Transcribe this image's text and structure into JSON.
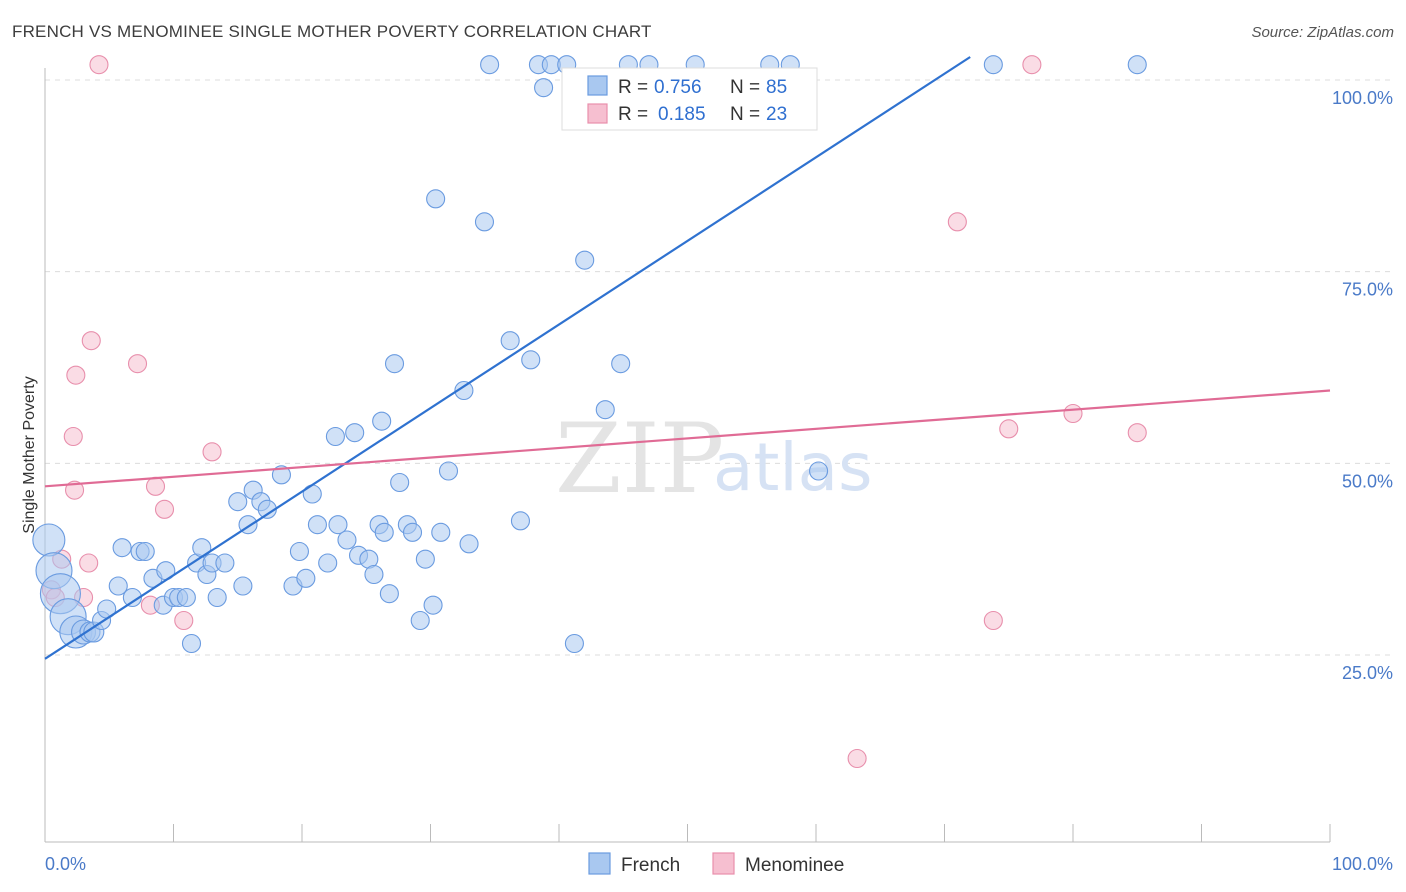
{
  "title": "FRENCH VS MENOMINEE SINGLE MOTHER POVERTY CORRELATION CHART",
  "source": "Source: ZipAtlas.com",
  "watermark": {
    "zip": "ZIP",
    "atlas": "atlas"
  },
  "legend": {
    "series": [
      {
        "r_label": "R =",
        "r_value": "0.756",
        "n_label": "N =",
        "n_value": "85"
      },
      {
        "r_label": "R =",
        "r_value": "0.185",
        "n_label": "N =",
        "n_value": "23"
      }
    ]
  },
  "bottom_legend": [
    "French",
    "Menominee"
  ],
  "colors": {
    "french_fill": "#a9c8f0",
    "french_stroke": "#6a9be0",
    "french_line": "#2f72d0",
    "menominee_fill": "#f6bfd0",
    "menominee_stroke": "#e88fac",
    "menominee_line": "#e06b95",
    "tick_text": "#4a7ac8",
    "grid": "#dcdcdc"
  },
  "chart_data": {
    "type": "scatter",
    "ylabel": "Single Mother Poverty",
    "xlim": [
      0,
      100
    ],
    "ylim": [
      0,
      105
    ],
    "x_tick_labels": [
      {
        "value": 0,
        "label": "0.0%"
      },
      {
        "value": 100,
        "label": "100.0%"
      }
    ],
    "y_tick_labels": [
      {
        "value": 25,
        "label": "25.0%"
      },
      {
        "value": 50,
        "label": "50.0%"
      },
      {
        "value": 75,
        "label": "75.0%"
      },
      {
        "value": 100,
        "label": "100.0%"
      }
    ],
    "grid": "horizontal-dashed",
    "legend_position": "top-center",
    "series": [
      {
        "name": "French",
        "trendline": {
          "x": [
            0,
            72
          ],
          "y": [
            24.5,
            103
          ]
        },
        "points": [
          [
            0.3,
            40,
            16
          ],
          [
            0.7,
            36,
            18
          ],
          [
            1.2,
            33,
            20
          ],
          [
            1.8,
            30,
            18
          ],
          [
            2.4,
            28,
            16
          ],
          [
            3.0,
            28,
            12
          ],
          [
            3.5,
            28,
            10
          ],
          [
            3.8,
            28,
            10
          ],
          [
            4.4,
            29.5,
            9
          ],
          [
            4.8,
            31,
            9
          ],
          [
            5.7,
            34,
            9
          ],
          [
            6.0,
            39,
            9
          ],
          [
            6.8,
            32.5,
            9
          ],
          [
            7.4,
            38.5,
            9
          ],
          [
            7.8,
            38.5,
            9
          ],
          [
            8.4,
            35,
            9
          ],
          [
            9.2,
            31.5,
            9
          ],
          [
            9.4,
            36,
            9
          ],
          [
            10,
            32.5,
            9
          ],
          [
            10.4,
            32.5,
            9
          ],
          [
            11,
            32.5,
            9
          ],
          [
            11.4,
            26.5,
            9
          ],
          [
            11.8,
            37,
            9
          ],
          [
            12.2,
            39,
            9
          ],
          [
            12.6,
            35.5,
            9
          ],
          [
            13.0,
            37,
            9
          ],
          [
            13.4,
            32.5,
            9
          ],
          [
            14.0,
            37,
            9
          ],
          [
            15.0,
            45,
            9
          ],
          [
            15.4,
            34,
            9
          ],
          [
            15.8,
            42,
            9
          ],
          [
            16.2,
            46.5,
            9
          ],
          [
            16.8,
            45,
            9
          ],
          [
            17.3,
            44,
            9
          ],
          [
            18.4,
            48.5,
            9
          ],
          [
            19.3,
            34,
            9
          ],
          [
            19.8,
            38.5,
            9
          ],
          [
            20.3,
            35,
            9
          ],
          [
            20.8,
            46,
            9
          ],
          [
            21.2,
            42,
            9
          ],
          [
            22.0,
            37,
            9
          ],
          [
            22.6,
            53.5,
            9
          ],
          [
            22.8,
            42,
            9
          ],
          [
            23.5,
            40,
            9
          ],
          [
            24.1,
            54,
            9
          ],
          [
            24.4,
            38,
            9
          ],
          [
            25.2,
            37.5,
            9
          ],
          [
            25.6,
            35.5,
            9
          ],
          [
            26.0,
            42,
            9
          ],
          [
            26.2,
            55.5,
            9
          ],
          [
            26.4,
            41,
            9
          ],
          [
            26.8,
            33,
            9
          ],
          [
            27.2,
            63,
            9
          ],
          [
            27.6,
            47.5,
            9
          ],
          [
            28.2,
            42,
            9
          ],
          [
            28.6,
            41,
            9
          ],
          [
            29.2,
            29.5,
            9
          ],
          [
            29.6,
            37.5,
            9
          ],
          [
            30.2,
            31.5,
            9
          ],
          [
            30.4,
            84.5,
            9
          ],
          [
            30.8,
            41,
            9
          ],
          [
            31.4,
            49,
            9
          ],
          [
            32.6,
            59.5,
            9
          ],
          [
            33.0,
            39.5,
            9
          ],
          [
            34.2,
            81.5,
            9
          ],
          [
            34.6,
            102,
            9
          ],
          [
            36.2,
            66,
            9
          ],
          [
            37.0,
            42.5,
            9
          ],
          [
            37.8,
            63.5,
            9
          ],
          [
            38.4,
            102,
            9
          ],
          [
            38.8,
            99,
            9
          ],
          [
            39.4,
            102,
            9
          ],
          [
            40.6,
            102,
            9
          ],
          [
            41.2,
            26.5,
            9
          ],
          [
            42.0,
            76.5,
            9
          ],
          [
            43.6,
            57,
            9
          ],
          [
            44.8,
            63,
            9
          ],
          [
            45.4,
            102,
            9
          ],
          [
            47.0,
            102,
            9
          ],
          [
            50.6,
            102,
            9
          ],
          [
            56.4,
            102,
            9
          ],
          [
            58.0,
            102,
            9
          ],
          [
            60.2,
            49,
            9
          ],
          [
            73.8,
            102,
            9
          ],
          [
            85.0,
            102,
            9
          ]
        ]
      },
      {
        "name": "Menominee",
        "trendline": {
          "x": [
            0,
            100
          ],
          "y": [
            47,
            59.5
          ]
        },
        "points": [
          [
            0.5,
            33.5,
            9
          ],
          [
            0.8,
            32.5,
            9
          ],
          [
            1.3,
            37.5,
            9
          ],
          [
            2.2,
            53.5,
            9
          ],
          [
            2.3,
            46.5,
            9
          ],
          [
            2.4,
            61.5,
            9
          ],
          [
            3.0,
            32.5,
            9
          ],
          [
            3.4,
            37,
            9
          ],
          [
            3.6,
            66,
            9
          ],
          [
            4.2,
            102,
            9
          ],
          [
            7.2,
            63,
            9
          ],
          [
            8.2,
            31.5,
            9
          ],
          [
            8.6,
            47,
            9
          ],
          [
            9.3,
            44,
            9
          ],
          [
            10.8,
            29.5,
            9
          ],
          [
            13.0,
            51.5,
            9
          ],
          [
            63.2,
            11.5,
            9
          ],
          [
            71.0,
            81.5,
            9
          ],
          [
            73.8,
            29.5,
            9
          ],
          [
            75.0,
            54.5,
            9
          ],
          [
            76.8,
            102,
            9
          ],
          [
            80.0,
            56.5,
            9
          ],
          [
            85.0,
            54,
            9
          ]
        ]
      }
    ]
  }
}
